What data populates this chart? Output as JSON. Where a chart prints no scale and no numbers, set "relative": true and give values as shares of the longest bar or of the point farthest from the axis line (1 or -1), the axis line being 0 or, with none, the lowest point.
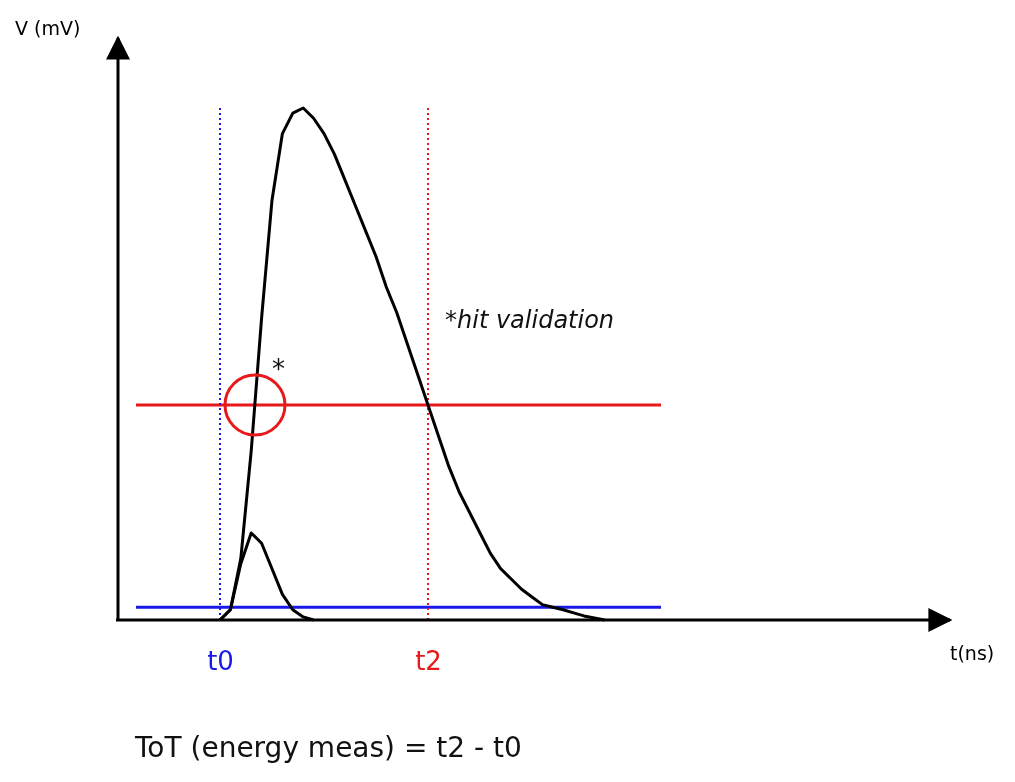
{
  "chart_data": {
    "type": "line",
    "relative": true,
    "xlabel": "t(ns)",
    "ylabel": "V (mV)",
    "categories": [
      null,
      null,
      null,
      null,
      null,
      null,
      null,
      null,
      null,
      null,
      "t0",
      null,
      null,
      null,
      null,
      null,
      null,
      null,
      null,
      null,
      null,
      null,
      null,
      null,
      null,
      null,
      null,
      null,
      null,
      null,
      "t2",
      null,
      null,
      null,
      null,
      null,
      null,
      null,
      null,
      null,
      null,
      null,
      null,
      null,
      null,
      null,
      null,
      null,
      null,
      null,
      null,
      null,
      null,
      null,
      null,
      null,
      null,
      null,
      null,
      null,
      null,
      null,
      null,
      null,
      null,
      null,
      null,
      null,
      null,
      null,
      null,
      null,
      null,
      null,
      null,
      null,
      null,
      null,
      null,
      null,
      null
    ],
    "series": [
      {
        "color": "#000000",
        "values": [
          null,
          null,
          null,
          null,
          null,
          null,
          null,
          null,
          null,
          null,
          0,
          0.02,
          0.12,
          0.33,
          0.59,
          0.82,
          0.95,
          0.99,
          1,
          0.98,
          0.95,
          0.91,
          0.86,
          0.81,
          0.76,
          0.71,
          0.65,
          0.6,
          0.54,
          0.48,
          0.42,
          0.36,
          0.3,
          0.25,
          0.21,
          0.17,
          0.13,
          0.1,
          0.08,
          0.06,
          0.045,
          0.03,
          0.025,
          0.02,
          0.014,
          0.008,
          0.004,
          0,
          null,
          null,
          null,
          null,
          null,
          null,
          null,
          null,
          null,
          null,
          null,
          null,
          null,
          null,
          null,
          null,
          null,
          null,
          null,
          null,
          null,
          null,
          null,
          null,
          null,
          null,
          null,
          null,
          null,
          null,
          null,
          null,
          null
        ]
      },
      {
        "color": "#000000",
        "values": [
          null,
          null,
          null,
          null,
          null,
          null,
          null,
          null,
          null,
          null,
          0,
          0.02,
          0.11,
          0.17,
          0.15,
          0.1,
          0.05,
          0.02,
          0.006,
          0,
          null,
          null,
          null,
          null,
          null,
          null,
          null,
          null,
          null,
          null,
          null,
          null,
          null,
          null,
          null,
          null,
          null,
          null,
          null,
          null,
          null,
          null,
          null,
          null,
          null,
          null,
          null,
          null,
          null,
          null,
          null,
          null,
          null,
          null,
          null,
          null,
          null,
          null,
          null,
          null,
          null,
          null,
          null,
          null,
          null,
          null,
          null,
          null,
          null,
          null,
          null,
          null,
          null,
          null,
          null,
          null,
          null,
          null,
          null,
          null,
          null
        ]
      }
    ],
    "ref_lines": [
      {
        "axis": "y",
        "value": 0.42,
        "color": "#e8191a",
        "line_style": "solid"
      },
      {
        "axis": "y",
        "value": 0.025,
        "color": "#1a1ae8",
        "line_style": "solid"
      },
      {
        "axis": "x",
        "value": "t0",
        "color": "#1a1ae8",
        "line_style": "dotted"
      },
      {
        "axis": "x",
        "value": "t2",
        "color": "#e8191a",
        "line_style": "dotted"
      }
    ],
    "annotations": [
      "*",
      "*hit validation",
      "ToT (energy meas) = t2 - t0"
    ]
  }
}
